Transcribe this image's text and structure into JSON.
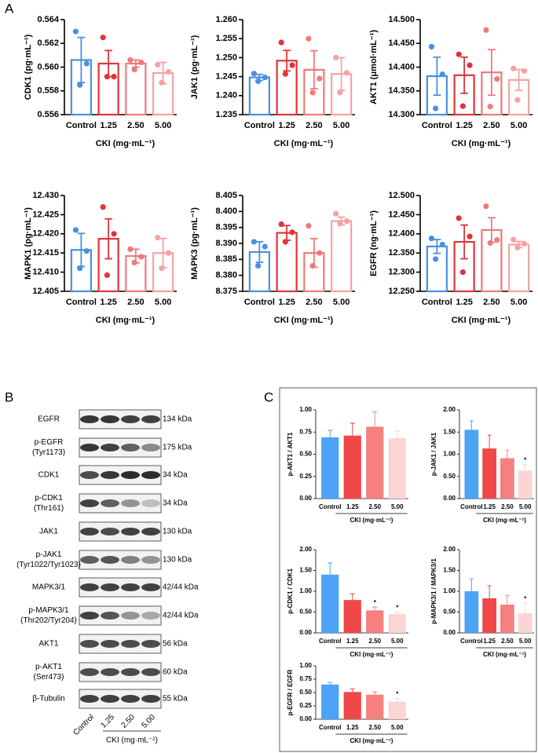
{
  "panels": [
    "A",
    "B",
    "C"
  ],
  "chart_data": [
    {
      "type": "bar",
      "ylabel": "CDK1 (pg·mL⁻¹)",
      "xlabel": "CKI (mg·mL⁻¹)",
      "categories": [
        "Control",
        "1.25",
        "2.50",
        "5.00"
      ],
      "colors": [
        "#4a90e2",
        "#e0343a",
        "#f07a7a",
        "#f4a3a2"
      ],
      "values": [
        0.5606,
        0.5603,
        0.5603,
        0.5595
      ],
      "errors": [
        0.0019,
        0.0011,
        0.0003,
        0.0009
      ],
      "points": [
        [
          0.563,
          0.5603,
          0.5585
        ],
        [
          0.5625,
          0.5592,
          0.5592
        ],
        [
          0.5606,
          0.5604,
          0.5598
        ],
        [
          0.5602,
          0.5596,
          0.5587
        ]
      ],
      "ylim": [
        0.556,
        0.564
      ],
      "yticks": [
        0.556,
        0.558,
        {
          "value": 0.56,
          "label": "0.560"
        },
        0.562,
        0.564
      ]
    },
    {
      "type": "bar",
      "ylabel": "JAK1 (pg·mL⁻¹)",
      "xlabel": "CKI (mg·mL⁻¹)",
      "categories": [
        "Control",
        "1.25",
        "2.50",
        "5.00"
      ],
      "colors": [
        "#4a90e2",
        "#e0343a",
        "#f07a7a",
        "#f4a3a2"
      ],
      "values": [
        1.2448,
        1.2492,
        1.2468,
        1.2457
      ],
      "errors": [
        0.0008,
        0.0027,
        0.005,
        0.0043
      ],
      "points": [
        [
          1.2458,
          1.2448,
          1.2438
        ],
        [
          1.254,
          1.248,
          1.2457
        ],
        [
          1.255,
          1.2445,
          1.2408
        ],
        [
          1.25,
          1.246,
          1.2408
        ]
      ],
      "ylim": [
        1.235,
        1.26
      ],
      "yticks": [
        1.235,
        {
          "value": 1.24,
          "label": "1.240"
        },
        1.245,
        {
          "value": 1.25,
          "label": "1.250"
        },
        1.255,
        {
          "value": 1.26,
          "label": "1.260"
        }
      ]
    },
    {
      "type": "bar",
      "ylabel": "AKT1 (μmol·mL⁻¹)",
      "xlabel": "CKI (mg·mL⁻¹)",
      "categories": [
        "Control",
        "1.25",
        "2.50",
        "5.00"
      ],
      "colors": [
        "#4a90e2",
        "#e0343a",
        "#f07a7a",
        "#f4a3a2"
      ],
      "values": [
        14.381,
        14.383,
        14.389,
        14.373
      ],
      "errors": [
        0.04,
        0.038,
        0.048,
        0.022
      ],
      "points": [
        [
          14.443,
          14.385,
          14.313
        ],
        [
          14.427,
          14.404,
          14.318
        ],
        [
          14.478,
          14.375,
          14.317
        ],
        [
          14.397,
          14.392,
          14.331
        ]
      ],
      "ylim": [
        14.3,
        14.5
      ],
      "yticks": [
        {
          "value": 14.3,
          "label": "14.300"
        },
        {
          "value": 14.35,
          "label": "14.350"
        },
        {
          "value": 14.4,
          "label": "14.400"
        },
        {
          "value": 14.45,
          "label": "14.450"
        },
        {
          "value": 14.5,
          "label": "14.500"
        }
      ]
    },
    {
      "type": "bar",
      "ylabel": "MAPK1 (pg·mL⁻¹)",
      "xlabel": "CKI (mg·mL⁻¹)",
      "categories": [
        "Control",
        "1.25",
        "2.50",
        "5.00"
      ],
      "colors": [
        "#4a90e2",
        "#e0343a",
        "#f07a7a",
        "#f4a3a2"
      ],
      "values": [
        12.4158,
        12.4187,
        12.4142,
        12.415
      ],
      "errors": [
        0.0043,
        0.0052,
        0.0018,
        0.0038
      ],
      "points": [
        [
          12.421,
          12.4155,
          12.411
        ],
        [
          12.427,
          12.42,
          12.4092
        ],
        [
          12.416,
          12.414,
          12.4125
        ],
        [
          12.419,
          12.415,
          12.411
        ]
      ],
      "ylim": [
        12.405,
        12.43
      ],
      "yticks": [
        12.405,
        {
          "value": 12.41,
          "label": "12.410"
        },
        12.415,
        {
          "value": 12.42,
          "label": "12.420"
        },
        12.425,
        {
          "value": 12.43,
          "label": "12.430"
        }
      ]
    },
    {
      "type": "bar",
      "ylabel": "MAPK3 (pg·mL⁻¹)",
      "xlabel": "CKI (mg·mL⁻¹)",
      "categories": [
        "Control",
        "1.25",
        "2.50",
        "5.00"
      ],
      "colors": [
        "#4a90e2",
        "#e0343a",
        "#f07a7a",
        "#f4a3a2"
      ],
      "values": [
        8.3873,
        8.3933,
        8.387,
        8.397
      ],
      "errors": [
        0.0032,
        0.0023,
        0.0045,
        0.0012
      ],
      "points": [
        [
          8.3905,
          8.389,
          8.383
        ],
        [
          8.396,
          8.3935,
          8.3905
        ],
        [
          8.3955,
          8.387,
          8.383
        ],
        [
          8.3993,
          8.397,
          8.3962
        ]
      ],
      "ylim": [
        8.375,
        8.405
      ],
      "yticks": [
        8.375,
        {
          "value": 8.38,
          "label": "8.380"
        },
        8.385,
        {
          "value": 8.39,
          "label": "8.390"
        },
        8.395,
        {
          "value": 8.4,
          "label": "8.400"
        },
        8.405
      ]
    },
    {
      "type": "bar",
      "ylabel": "EGFR (ng·mL⁻¹)",
      "xlabel": "CKI (mg·mL⁻¹)",
      "categories": [
        "Control",
        "1.25",
        "2.50",
        "5.00"
      ],
      "colors": [
        "#4a90e2",
        "#e0343a",
        "#f07a7a",
        "#f4a3a2"
      ],
      "values": [
        12.367,
        12.379,
        12.41,
        12.372
      ],
      "errors": [
        0.018,
        0.044,
        0.032,
        0.008
      ],
      "points": [
        [
          12.388,
          12.372,
          12.334
        ],
        [
          12.441,
          12.393,
          12.3
        ],
        [
          12.472,
          12.384,
          12.376
        ],
        [
          12.385,
          12.374,
          12.364
        ]
      ],
      "ylim": [
        12.25,
        12.5
      ],
      "yticks": [
        {
          "value": 12.25,
          "label": "12.250"
        },
        {
          "value": 12.3,
          "label": "12.300"
        },
        {
          "value": 12.35,
          "label": "12.350"
        },
        {
          "value": 12.4,
          "label": "12.400"
        },
        {
          "value": 12.45,
          "label": "12.450"
        },
        {
          "value": 12.5,
          "label": "12.500"
        }
      ]
    },
    {
      "type": "bar",
      "ylabel": "p-AKT1 / AKT1",
      "xlabel": "CKI (mg·mL⁻¹)",
      "categories": [
        "Control",
        "1.25",
        "2.50",
        "5.00"
      ],
      "colors": [
        "#4da3f5",
        "#f04848",
        "#f48080",
        "#fbd5d3"
      ],
      "values": [
        0.69,
        0.71,
        0.81,
        0.68
      ],
      "errors": [
        0.08,
        0.14,
        0.17,
        0.08
      ],
      "ylim": [
        0,
        1
      ],
      "yticks": [
        {
          "value": 0,
          "label": "0.00"
        },
        0.25,
        {
          "value": 0.5,
          "label": "0.50"
        },
        0.75,
        {
          "value": 1,
          "label": "1.00"
        }
      ]
    },
    {
      "type": "bar",
      "ylabel": "p-JAK1 / JAK1",
      "xlabel": "CKI (mg·mL⁻¹)",
      "categories": [
        "Control",
        "1.25",
        "2.50",
        "5.00"
      ],
      "colors": [
        "#4da3f5",
        "#f04848",
        "#f48080",
        "#fbd5d3"
      ],
      "values": [
        1.55,
        1.13,
        0.91,
        0.63
      ],
      "errors": [
        0.2,
        0.3,
        0.18,
        0.14
      ],
      "significance": [
        null,
        null,
        null,
        "*"
      ],
      "ylim": [
        0,
        2
      ],
      "yticks": [
        {
          "value": 0,
          "label": "0.00"
        },
        {
          "value": 0.5,
          "label": "0.50"
        },
        {
          "value": 1,
          "label": "1.00"
        },
        {
          "value": 1.5,
          "label": "1.50"
        },
        {
          "value": 2,
          "label": "2.00"
        }
      ]
    },
    {
      "type": "bar",
      "ylabel": "p-CDK1 / CDK1",
      "xlabel": "CKI (mg·mL⁻¹)",
      "categories": [
        "Control",
        "1.25",
        "2.50",
        "5.00"
      ],
      "colors": [
        "#4da3f5",
        "#f04848",
        "#f48080",
        "#fbd5d3"
      ],
      "values": [
        1.4,
        0.79,
        0.54,
        0.45
      ],
      "errors": [
        0.28,
        0.15,
        0.08,
        0.05
      ],
      "significance": [
        null,
        null,
        "*",
        "*"
      ],
      "ylim": [
        0,
        2
      ],
      "yticks": [
        {
          "value": 0,
          "label": "0.00"
        },
        {
          "value": 0.5,
          "label": "0.50"
        },
        {
          "value": 1,
          "label": "1.00"
        },
        {
          "value": 1.5,
          "label": "1.50"
        },
        {
          "value": 2,
          "label": "2.00"
        }
      ]
    },
    {
      "type": "bar",
      "ylabel": "p-MAPK3/1 / MAPK3/1",
      "xlabel": "CKI (mg·mL⁻¹)",
      "categories": [
        "Control",
        "1.25",
        "2.50",
        "5.00"
      ],
      "colors": [
        "#4da3f5",
        "#f04848",
        "#f48080",
        "#fbd5d3"
      ],
      "values": [
        1.0,
        0.83,
        0.68,
        0.47
      ],
      "errors": [
        0.3,
        0.3,
        0.22,
        0.25
      ],
      "significance": [
        null,
        null,
        null,
        "*"
      ],
      "ylim": [
        0,
        2
      ],
      "yticks": [
        {
          "value": 0,
          "label": "0.00"
        },
        {
          "value": 0.5,
          "label": "0.50"
        },
        {
          "value": 1,
          "label": "1.00"
        },
        {
          "value": 1.5,
          "label": "1.50"
        },
        {
          "value": 2,
          "label": "2.00"
        }
      ]
    },
    {
      "type": "bar",
      "ylabel": "p-EGFR / EGFR",
      "xlabel": "CKI (mg·mL⁻¹)",
      "categories": [
        "Control",
        "1.25",
        "2.50",
        "5.00"
      ],
      "colors": [
        "#4da3f5",
        "#f04848",
        "#f48080",
        "#fbd5d3"
      ],
      "values": [
        0.65,
        0.51,
        0.46,
        0.33
      ],
      "errors": [
        0.04,
        0.06,
        0.05,
        0.06
      ],
      "significance": [
        null,
        null,
        null,
        "*"
      ],
      "ylim": [
        0,
        1
      ],
      "yticks": [
        {
          "value": 0,
          "label": "0.00"
        },
        0.25,
        {
          "value": 0.5,
          "label": "0.50"
        },
        0.75,
        {
          "value": 1,
          "label": "1.00"
        }
      ]
    }
  ],
  "blot": {
    "rows": [
      {
        "label": [
          "EGFR"
        ],
        "size": "134 kDa"
      },
      {
        "label": [
          "p-EGFR",
          "(Tyr1173)"
        ],
        "size": "175 kDa"
      },
      {
        "label": [
          "CDK1"
        ],
        "size": "34 kDa"
      },
      {
        "label": [
          "p-CDK1",
          "(Thr161)"
        ],
        "size": "34 kDa"
      },
      {
        "label": [
          "JAK1"
        ],
        "size": "130 kDa"
      },
      {
        "label": [
          "p-JAK1",
          "(Tyr1022/Tyr1023)"
        ],
        "size": "130 kDa"
      },
      {
        "label": [
          "MAPK3/1"
        ],
        "size": "42/44 kDa"
      },
      {
        "label": [
          "p-MAPK3/1",
          "(Thr202/Tyr204)"
        ],
        "size": "42/44 kDa"
      },
      {
        "label": [
          "AKT1"
        ],
        "size": "56 kDa"
      },
      {
        "label": [
          "p-AKT1",
          "(Ser473)"
        ],
        "size": "60 kDa"
      },
      {
        "label": [
          "β-Tubulin"
        ],
        "size": "55 kDa"
      }
    ],
    "lanes": [
      "Control",
      "1.25",
      "2.50",
      "5.00"
    ],
    "xlabel": "CKI (mg·mL⁻¹)"
  }
}
